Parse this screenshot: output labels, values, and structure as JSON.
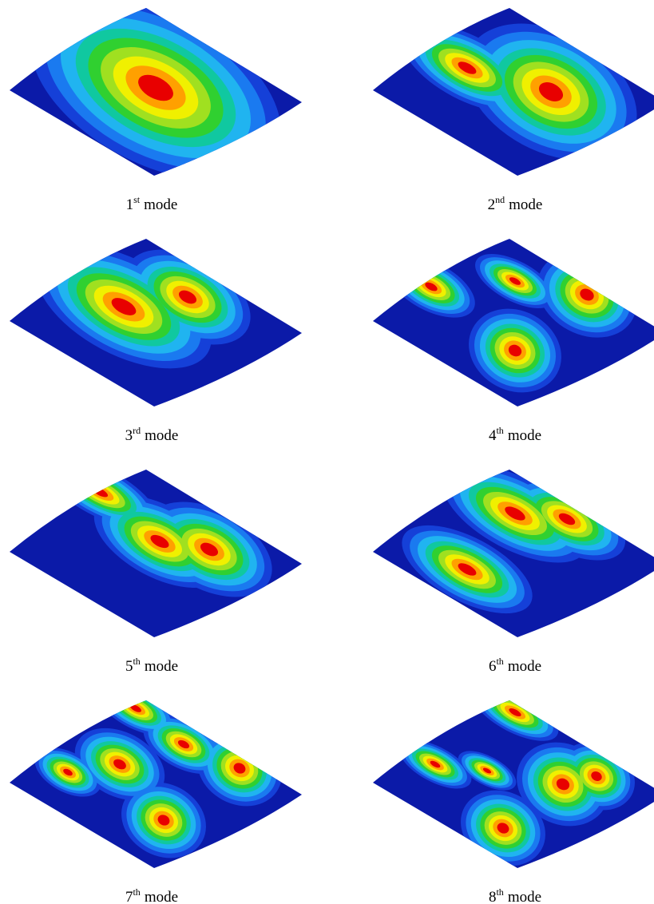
{
  "figure": {
    "modes": [
      {
        "number": "1",
        "suffix": "st",
        "word": "mode"
      },
      {
        "number": "2",
        "suffix": "nd",
        "word": "mode"
      },
      {
        "number": "3",
        "suffix": "rd",
        "word": "mode"
      },
      {
        "number": "4",
        "suffix": "th",
        "word": "mode"
      },
      {
        "number": "5",
        "suffix": "th",
        "word": "mode"
      },
      {
        "number": "6",
        "suffix": "th",
        "word": "mode"
      },
      {
        "number": "7",
        "suffix": "th",
        "word": "mode"
      },
      {
        "number": "8",
        "suffix": "th",
        "word": "mode"
      }
    ]
  }
}
